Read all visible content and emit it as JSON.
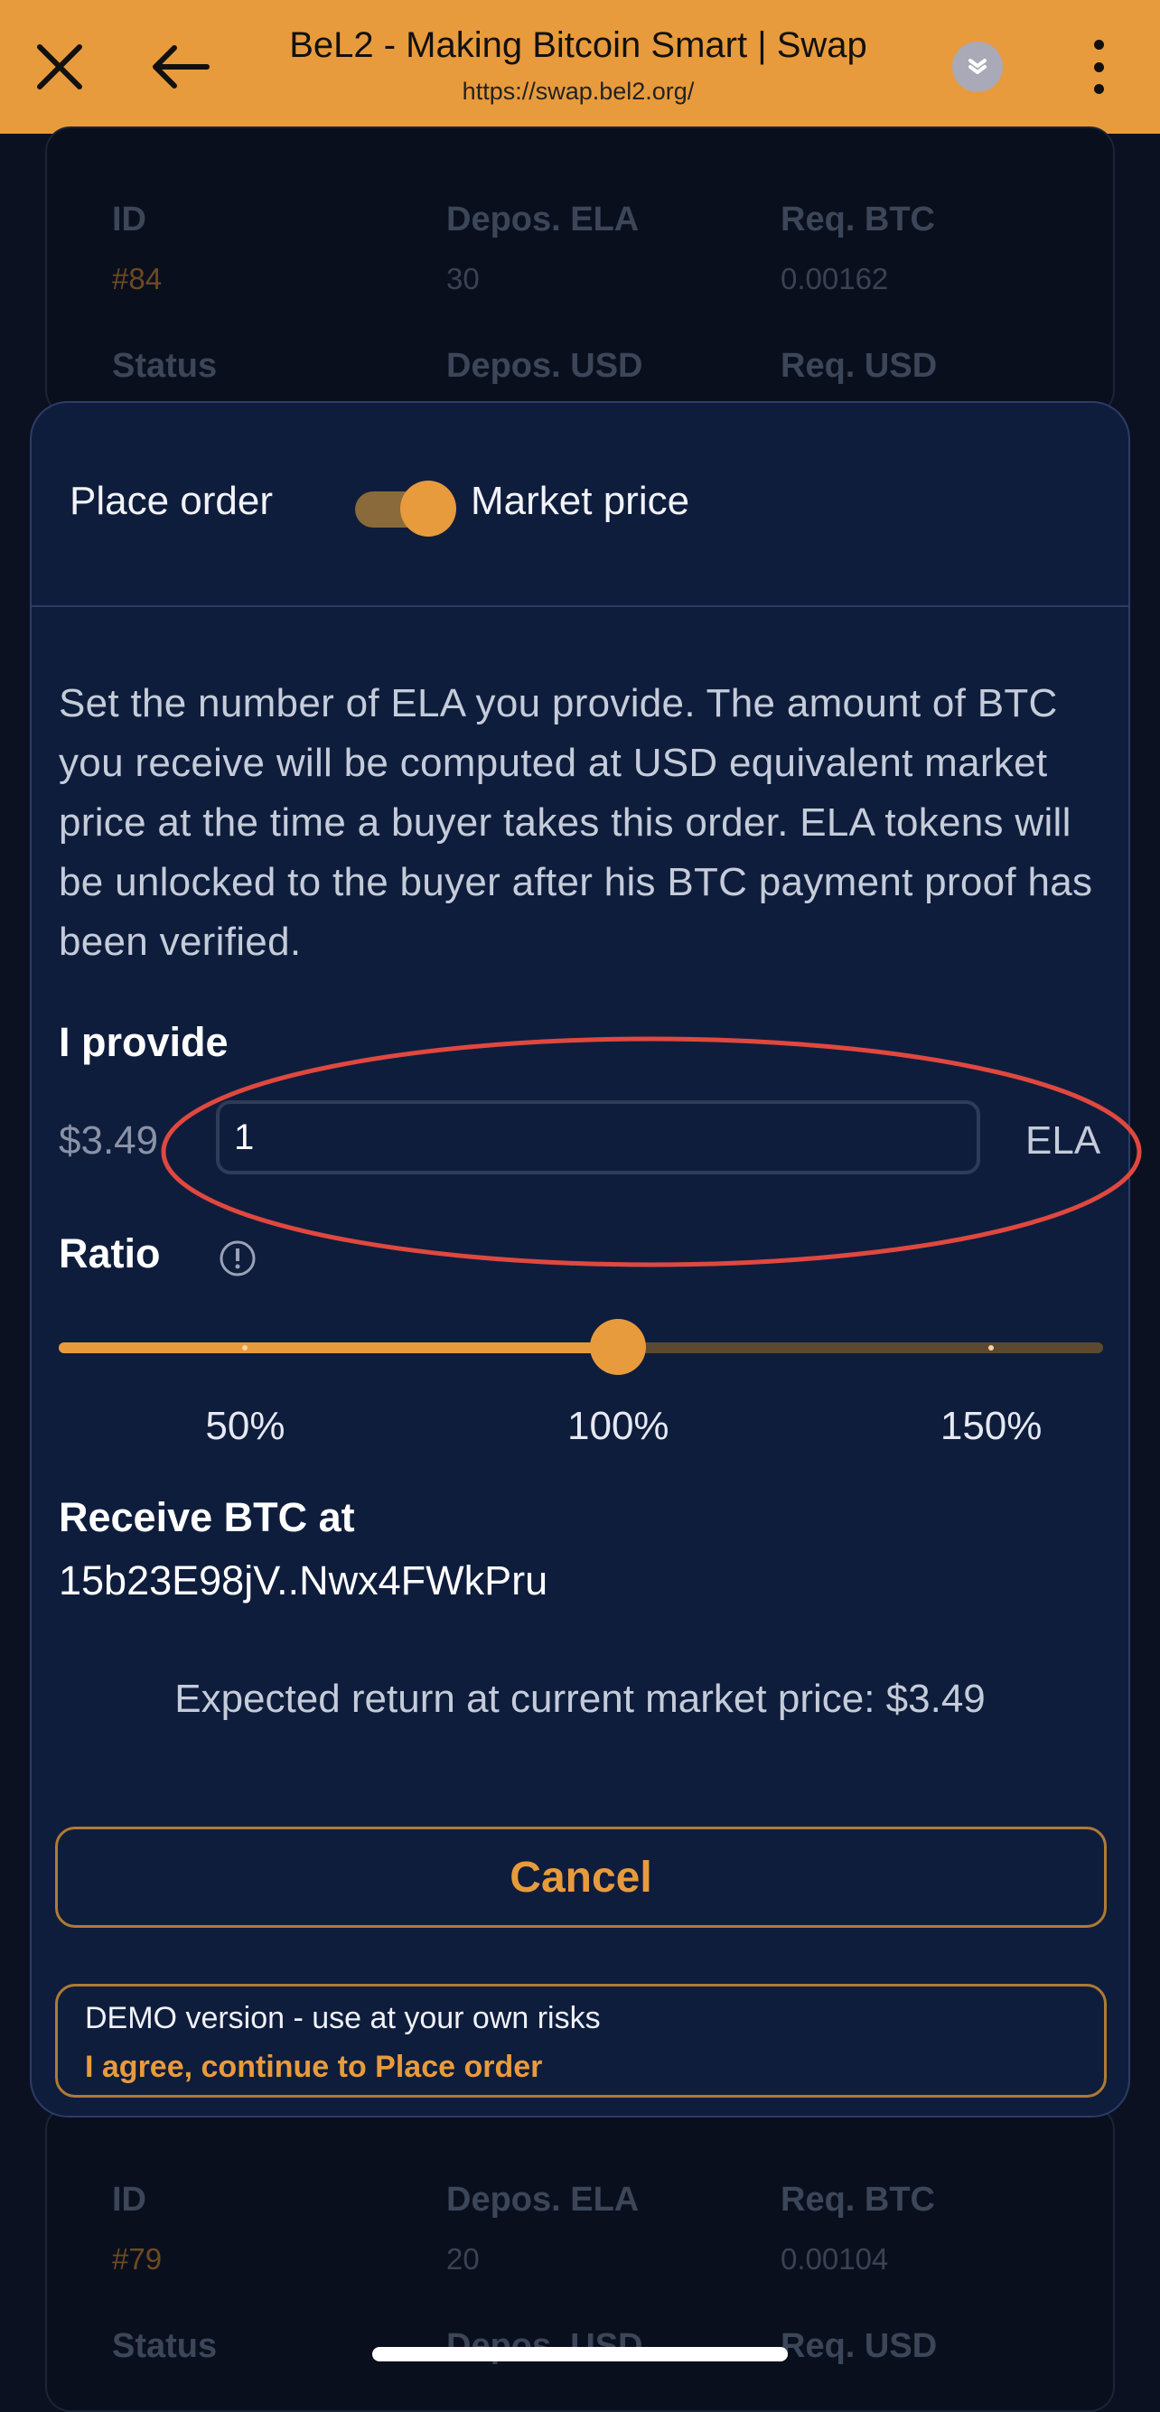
{
  "browser": {
    "title": "BeL2 - Making Bitcoin Smart | Swap",
    "url": "https://swap.bel2.org/"
  },
  "order_cards": [
    {
      "id_label": "ID",
      "id_value": "#84",
      "ela_label": "Depos. ELA",
      "ela_value": "30",
      "btc_label": "Req. BTC",
      "btc_value": "0.00162",
      "status_label": "Status",
      "usd_label": "Depos. USD",
      "req_usd_label": "Req. USD"
    },
    {
      "id_label": "ID",
      "id_value": "#79",
      "ela_label": "Depos. ELA",
      "ela_value": "20",
      "btc_label": "Req. BTC",
      "btc_value": "0.00104",
      "status_label": "Status",
      "usd_label": "Depos. USD",
      "req_usd_label": "Req. USD"
    }
  ],
  "modal": {
    "toggle_left_label": "Place order",
    "toggle_right_label": "Market price",
    "toggle_on": true,
    "description": "Set the number of ELA you provide. The amount of BTC you receive will be computed at USD equivalent market price at the time a buyer takes this order. ELA tokens will be unlocked to the buyer after his BTC payment proof has been verified.",
    "provide_title": "I provide",
    "provide_usd": "$3.49",
    "provide_amount": "1",
    "provide_unit": "ELA",
    "ratio_title": "Ratio",
    "ratio": {
      "min": 25,
      "max": 165,
      "value": 100,
      "marks": [
        {
          "value": 50,
          "label": "50%"
        },
        {
          "value": 100,
          "label": "100%"
        },
        {
          "value": 150,
          "label": "150%"
        }
      ]
    },
    "receive_title": "Receive BTC at",
    "btc_address": "15b23E98jV..Nwx4FWkPru",
    "expected_return": "Expected return at current market price: $3.49",
    "cancel_label": "Cancel",
    "demo_notice": "DEMO version - use at your own risks",
    "agree_label": "I agree, continue to Place order"
  },
  "colors": {
    "accent": "#e89b3c",
    "modal_bg": "#0f1d3d",
    "page_bg": "#0b1120",
    "annotation": "#e0483f"
  }
}
